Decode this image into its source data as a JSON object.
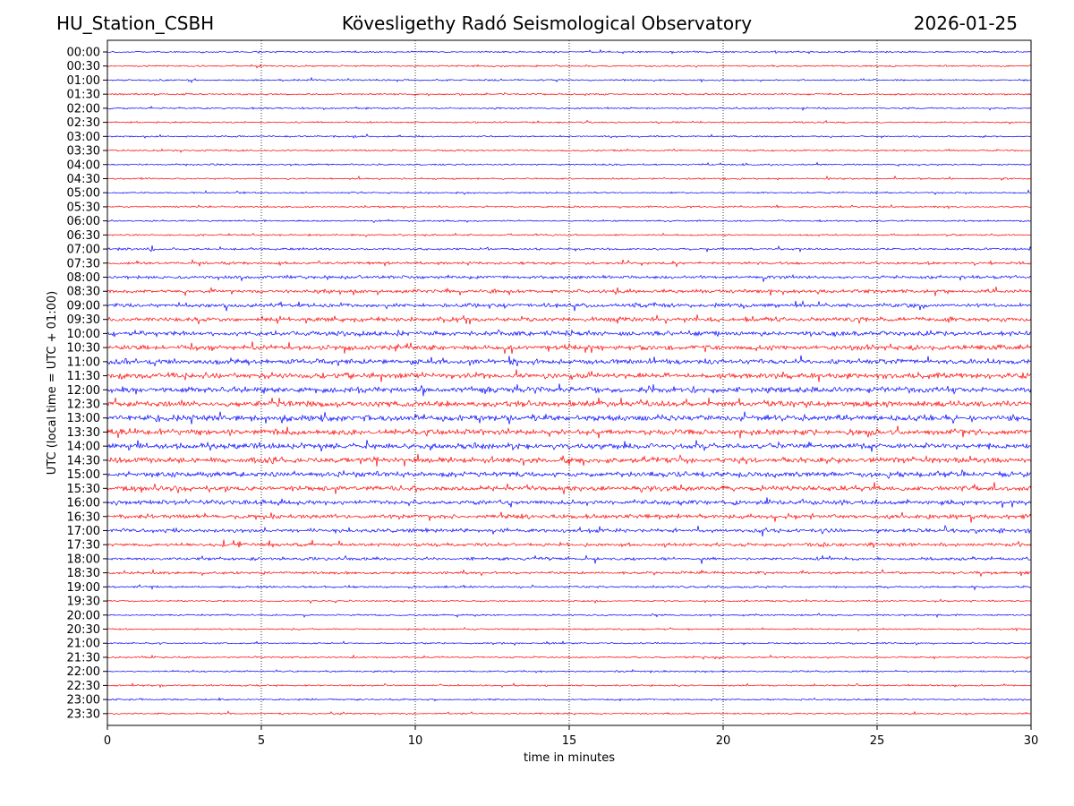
{
  "header": {
    "station": "HU_Station_CSBH",
    "title": "Kövesligethy Radó Seismological Observatory",
    "date": "2026-01-25"
  },
  "chart_data": {
    "type": "line",
    "title": "Kövesligethy Radó Seismological Observatory",
    "subtitle_left": "HU_Station_CSBH",
    "subtitle_right": "2026-01-25",
    "xlabel": "time in minutes",
    "ylabel": "UTC (local time = UTC + 01:00)",
    "xlim": [
      0,
      30
    ],
    "xticks": [
      0,
      5,
      10,
      15,
      20,
      25,
      30
    ],
    "grid": "vertical dotted at each x tick",
    "row_labels": [
      "00:00",
      "00:30",
      "01:00",
      "01:30",
      "02:00",
      "02:30",
      "03:00",
      "03:30",
      "04:00",
      "04:30",
      "05:00",
      "05:30",
      "06:00",
      "06:30",
      "07:00",
      "07:30",
      "08:00",
      "08:30",
      "09:00",
      "09:30",
      "10:00",
      "10:30",
      "11:00",
      "11:30",
      "12:00",
      "12:30",
      "13:00",
      "13:30",
      "14:00",
      "14:30",
      "15:00",
      "15:30",
      "16:00",
      "16:30",
      "17:00",
      "17:30",
      "18:00",
      "18:30",
      "19:00",
      "19:30",
      "20:00",
      "20:30",
      "21:00",
      "21:30",
      "22:00",
      "22:30",
      "23:00",
      "23:30"
    ],
    "trace_colors": [
      "#0000ff",
      "#ff0000"
    ],
    "notable_events": [
      {
        "row": "07:00",
        "minute": 1.4,
        "amplitude": 1.0
      },
      {
        "row": "12:00",
        "minute": 27.3,
        "amplitude": 0.6
      },
      {
        "row": "12:00",
        "minute": 0.5,
        "amplitude": 0.5
      },
      {
        "row": "17:00",
        "minute": 29.0,
        "amplitude": 0.5
      }
    ]
  }
}
